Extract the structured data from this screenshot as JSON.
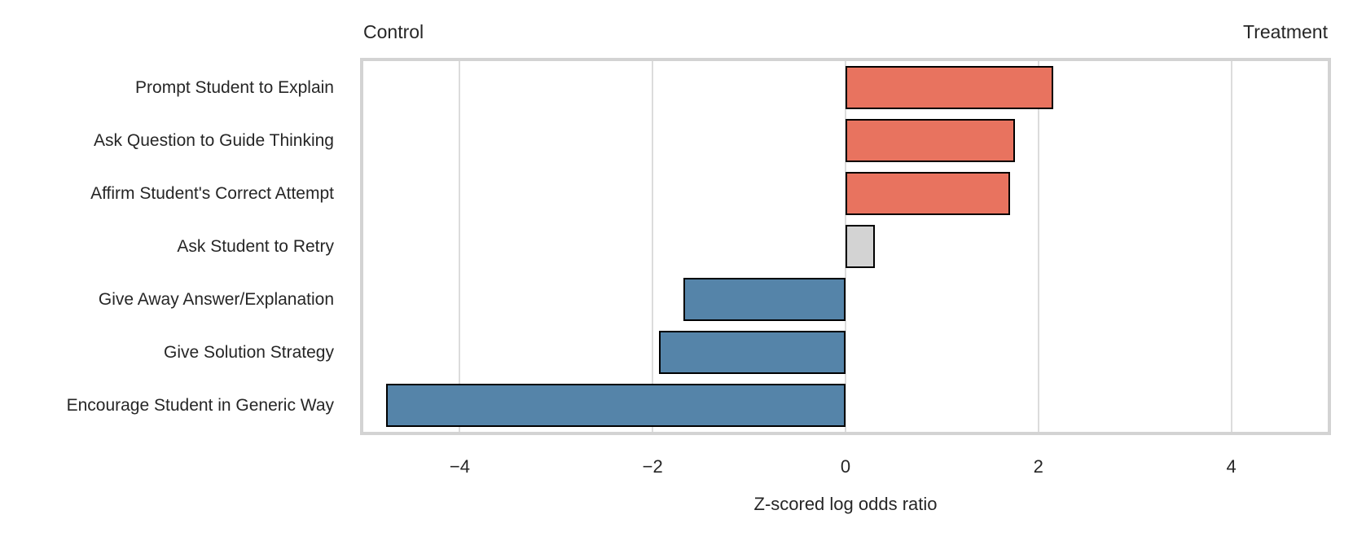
{
  "colors": {
    "positive_bar": "#e8735f",
    "negative_bar": "#5584a9",
    "neutral_bar": "#d3d3d3",
    "bar_edge": "#000000",
    "gridline": "#dcdcdc",
    "plot_border": "#d3d3d3",
    "text": "#262626"
  },
  "chart_data": {
    "type": "bar",
    "orientation": "horizontal",
    "title": "",
    "annotations": {
      "top_left": "Control",
      "top_right": "Treatment"
    },
    "xlabel": "Z-scored log odds ratio",
    "ylabel": "",
    "xlim": [
      -5,
      5
    ],
    "xticks": [
      -4,
      -2,
      0,
      2,
      4
    ],
    "xtick_labels": [
      "−4",
      "−2",
      "0",
      "2",
      "4"
    ],
    "grid": "vertical-at-xticks",
    "legend": false,
    "categories": [
      "Prompt Student to Explain",
      "Ask Question to Guide Thinking",
      "Affirm Student's Correct Attempt",
      "Ask Student to Retry",
      "Give Away Answer/Explanation",
      "Give Solution Strategy",
      "Encourage Student in Generic Way"
    ],
    "values": [
      2.15,
      1.76,
      1.71,
      0.3,
      -1.68,
      -1.93,
      -4.76
    ],
    "bar_colors": [
      "#e8735f",
      "#e8735f",
      "#e8735f",
      "#d3d3d3",
      "#5584a9",
      "#5584a9",
      "#5584a9"
    ]
  }
}
